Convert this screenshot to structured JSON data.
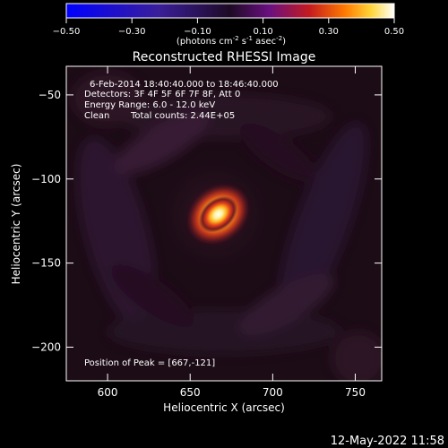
{
  "chart_data": {
    "type": "heatmap",
    "title": "Reconstructed RHESSI Image",
    "xlabel": "Heliocentric X (arcsec)",
    "ylabel": "Heliocentric Y (arcsec)",
    "xlim": [
      575,
      766
    ],
    "ylim": [
      -220,
      -33
    ],
    "x_ticks": [
      600,
      650,
      700,
      750
    ],
    "y_ticks": [
      -50,
      -100,
      -150,
      -200
    ],
    "colorbar": {
      "min": -0.5,
      "max": 0.5,
      "ticks": [
        "-0.50",
        "-0.30",
        "-0.10",
        "0.10",
        "0.30",
        "0.50"
      ],
      "unit_text": "(photons cm",
      "unit_sup1": "-2",
      "unit_mid": " s",
      "unit_sup2": "-1",
      "unit_mid2": " asec",
      "unit_sup3": "-2",
      "unit_end": ")"
    },
    "annotations": {
      "time_range": "6-Feb-2014 18:40:40.000 to 18:46:40.000",
      "detectors": "Detectors: 3F 4F 5F 6F 7F 8F, Att 0",
      "energy": "Energy Range: 6.0 - 12.0 keV",
      "method": "Clean",
      "total_counts": "Total counts: 2.44E+05",
      "peak": "Position of Peak = [667,-121]"
    },
    "peak": {
      "x": 667,
      "y": -121,
      "value": 0.5
    },
    "timestamp": "12-May-2022 11:58"
  }
}
